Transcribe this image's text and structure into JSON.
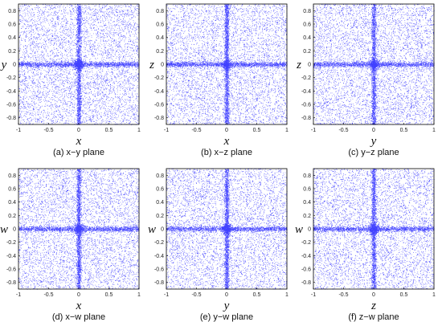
{
  "figure": {
    "point_color": "#0000ff",
    "frame_color": "#000000"
  },
  "chart_data": [
    {
      "type": "scatter",
      "caption": "(a) x−y plane",
      "xlabel": "x",
      "ylabel": "y",
      "xlim": [
        -1,
        1
      ],
      "ylim": [
        -0.9,
        0.9
      ],
      "xticks": [
        "-1",
        "-0.5",
        "0",
        "0.5",
        "1"
      ],
      "yticks": [
        "0.8",
        "0.6",
        "0.4",
        "0.2",
        "0",
        "-0.2",
        "-0.4",
        "-0.6",
        "-0.8"
      ],
      "grid": false,
      "description_of_points": "dense uniform cloud with concentration along x=0 and y=0",
      "approx_point_count": 20000
    },
    {
      "type": "scatter",
      "caption": "(b) x−z plane",
      "xlabel": "x",
      "ylabel": "z",
      "xlim": [
        -1,
        1
      ],
      "ylim": [
        -0.9,
        0.9
      ],
      "xticks": [
        "-1",
        "-0.5",
        "0",
        "0.5",
        "1"
      ],
      "yticks": [
        "0.8",
        "0.6",
        "0.4",
        "0.2",
        "0",
        "-0.2",
        "-0.4",
        "-0.6",
        "-0.8"
      ],
      "grid": false,
      "approx_point_count": 20000
    },
    {
      "type": "scatter",
      "caption": "(c) y−z plane",
      "xlabel": "y",
      "ylabel": "z",
      "xlim": [
        -1,
        1
      ],
      "ylim": [
        -0.9,
        0.9
      ],
      "xticks": [
        "-1",
        "-0.5",
        "0",
        "0.5",
        "1"
      ],
      "yticks": [
        "0.8",
        "0.6",
        "0.4",
        "0.2",
        "0",
        "-0.2",
        "-0.4",
        "-0.6",
        "-0.8"
      ],
      "grid": false,
      "approx_point_count": 20000
    },
    {
      "type": "scatter",
      "caption": "(d) x−w plane",
      "xlabel": "x",
      "ylabel": "w",
      "xlim": [
        -1,
        1
      ],
      "ylim": [
        -0.9,
        0.9
      ],
      "xticks": [
        "-1",
        "-0.5",
        "0",
        "0.5",
        "1"
      ],
      "yticks": [
        "0.8",
        "0.6",
        "0.4",
        "0.2",
        "0",
        "-0.2",
        "-0.4",
        "-0.6",
        "-0.8"
      ],
      "grid": false,
      "approx_point_count": 20000
    },
    {
      "type": "scatter",
      "caption": "(e) y−w plane",
      "xlabel": "y",
      "ylabel": "w",
      "xlim": [
        -1,
        1
      ],
      "ylim": [
        -0.9,
        0.9
      ],
      "xticks": [
        "-1",
        "-0.5",
        "0",
        "0.5",
        "1"
      ],
      "yticks": [
        "0.8",
        "0.6",
        "0.4",
        "0.2",
        "0",
        "-0.2",
        "-0.4",
        "-0.6",
        "-0.8"
      ],
      "grid": false,
      "approx_point_count": 20000
    },
    {
      "type": "scatter",
      "caption": "(f) z−w plane",
      "xlabel": "z",
      "ylabel": "w",
      "xlim": [
        -1,
        1
      ],
      "ylim": [
        -0.9,
        0.9
      ],
      "xticks": [
        "-1",
        "-0.5",
        "0",
        "0.5",
        "1"
      ],
      "yticks": [
        "0.8",
        "0.6",
        "0.4",
        "0.2",
        "0",
        "-0.2",
        "-0.4",
        "-0.6",
        "-0.8"
      ],
      "grid": false,
      "approx_point_count": 20000
    }
  ]
}
